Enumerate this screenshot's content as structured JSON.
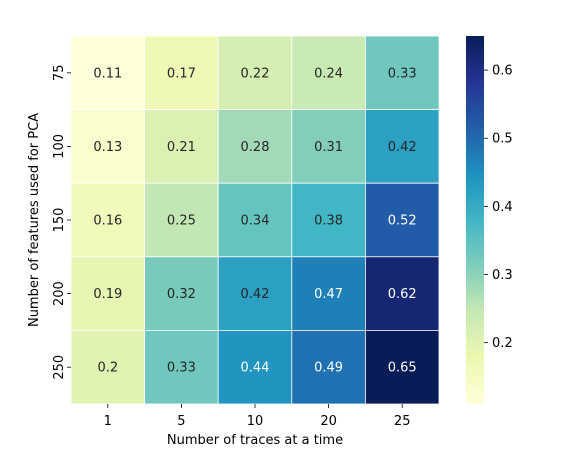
{
  "chart_data": {
    "type": "heatmap",
    "title": "",
    "xlabel": "Number of traces at a time",
    "ylabel": "Number of features used for PCA",
    "x_categories": [
      "1",
      "5",
      "10",
      "20",
      "25"
    ],
    "y_categories": [
      "75",
      "100",
      "150",
      "200",
      "250"
    ],
    "values": [
      [
        0.11,
        0.17,
        0.22,
        0.24,
        0.33
      ],
      [
        0.13,
        0.21,
        0.28,
        0.31,
        0.42
      ],
      [
        0.16,
        0.25,
        0.34,
        0.38,
        0.52
      ],
      [
        0.19,
        0.32,
        0.42,
        0.47,
        0.62
      ],
      [
        0.2,
        0.33,
        0.44,
        0.49,
        0.65
      ]
    ],
    "colormap": "YlGnBu",
    "colorbar": {
      "range": [
        0.11,
        0.65
      ],
      "ticks": [
        0.2,
        0.3,
        0.4,
        0.5,
        0.6
      ],
      "tick_labels": [
        "0.2",
        "0.3",
        "0.4",
        "0.5",
        "0.6"
      ]
    },
    "cell_separator_color": "#ffffff",
    "annotation_dark_text": "#262626",
    "annotation_light_text": "#ffffff"
  }
}
